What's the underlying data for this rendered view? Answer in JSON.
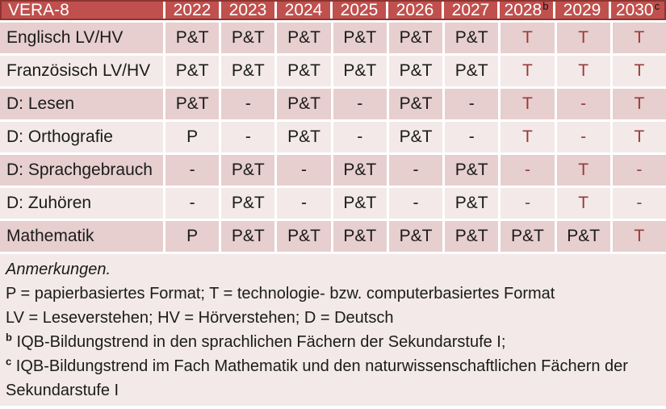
{
  "table": {
    "title": "VERA-8",
    "columns": [
      {
        "label": "2022",
        "sup": ""
      },
      {
        "label": "2023",
        "sup": ""
      },
      {
        "label": "2024",
        "sup": ""
      },
      {
        "label": "2025",
        "sup": ""
      },
      {
        "label": "2026",
        "sup": ""
      },
      {
        "label": "2027",
        "sup": ""
      },
      {
        "label": "2028",
        "sup": "b"
      },
      {
        "label": "2029",
        "sup": ""
      },
      {
        "label": "2030",
        "sup": "c"
      }
    ],
    "rows": [
      {
        "label": "Englisch LV/HV",
        "cells": [
          {
            "v": "P&T",
            "red": false
          },
          {
            "v": "P&T",
            "red": false
          },
          {
            "v": "P&T",
            "red": false
          },
          {
            "v": "P&T",
            "red": false
          },
          {
            "v": "P&T",
            "red": false
          },
          {
            "v": "P&T",
            "red": false
          },
          {
            "v": "T",
            "red": true
          },
          {
            "v": "T",
            "red": true
          },
          {
            "v": "T",
            "red": true
          }
        ]
      },
      {
        "label": "Französisch LV/HV",
        "cells": [
          {
            "v": "P&T",
            "red": false
          },
          {
            "v": "P&T",
            "red": false
          },
          {
            "v": "P&T",
            "red": false
          },
          {
            "v": "P&T",
            "red": false
          },
          {
            "v": "P&T",
            "red": false
          },
          {
            "v": "P&T",
            "red": false
          },
          {
            "v": "T",
            "red": true
          },
          {
            "v": "T",
            "red": true
          },
          {
            "v": "T",
            "red": true
          }
        ]
      },
      {
        "label": "D: Lesen",
        "cells": [
          {
            "v": "P&T",
            "red": false
          },
          {
            "v": "-",
            "red": false
          },
          {
            "v": "P&T",
            "red": false
          },
          {
            "v": "-",
            "red": false
          },
          {
            "v": "P&T",
            "red": false
          },
          {
            "v": "-",
            "red": false
          },
          {
            "v": "T",
            "red": true
          },
          {
            "v": "-",
            "red": true
          },
          {
            "v": "T",
            "red": true
          }
        ]
      },
      {
        "label": "D: Orthografie",
        "cells": [
          {
            "v": "P",
            "red": false
          },
          {
            "v": "-",
            "red": false
          },
          {
            "v": "P&T",
            "red": false
          },
          {
            "v": "-",
            "red": false
          },
          {
            "v": "P&T",
            "red": false
          },
          {
            "v": "-",
            "red": false
          },
          {
            "v": "T",
            "red": true
          },
          {
            "v": "-",
            "red": true
          },
          {
            "v": "T",
            "red": true
          }
        ]
      },
      {
        "label": "D: Sprachgebrauch",
        "cells": [
          {
            "v": "-",
            "red": false
          },
          {
            "v": "P&T",
            "red": false
          },
          {
            "v": "-",
            "red": false
          },
          {
            "v": "P&T",
            "red": false
          },
          {
            "v": "-",
            "red": false
          },
          {
            "v": "P&T",
            "red": false
          },
          {
            "v": "-",
            "red": true
          },
          {
            "v": "T",
            "red": true
          },
          {
            "v": "-",
            "red": true
          }
        ]
      },
      {
        "label": "D: Zuhören",
        "cells": [
          {
            "v": "-",
            "red": false
          },
          {
            "v": "P&T",
            "red": false
          },
          {
            "v": "-",
            "red": false
          },
          {
            "v": "P&T",
            "red": false
          },
          {
            "v": "-",
            "red": false
          },
          {
            "v": "P&T",
            "red": false
          },
          {
            "v": "-",
            "red": true
          },
          {
            "v": "T",
            "red": true
          },
          {
            "v": "-",
            "red": true
          }
        ]
      },
      {
        "label": "Mathematik",
        "cells": [
          {
            "v": "P",
            "red": false
          },
          {
            "v": "P&T",
            "red": false
          },
          {
            "v": "P&T",
            "red": false
          },
          {
            "v": "P&T",
            "red": false
          },
          {
            "v": "P&T",
            "red": false
          },
          {
            "v": "P&T",
            "red": false
          },
          {
            "v": "P&T",
            "red": false
          },
          {
            "v": "P&T",
            "red": false
          },
          {
            "v": "T",
            "red": true
          }
        ]
      }
    ]
  },
  "notes": {
    "heading": "Anmerkungen.",
    "formats": "P = papierbasiertes Format; T = technologie- bzw. computerbasiertes Format",
    "abbreviations": "LV = Leseverstehen; HV = Hörverstehen; D = Deutsch",
    "footnote_b": {
      "sup": "b",
      "text": "IQB-Bildungstrend in den sprachlichen Fächern der Sekundarstufe I;"
    },
    "footnote_c": {
      "sup": "c",
      "text": "IQB-Bildungstrend im Fach Mathematik und den naturwissenschaftlichen Fächern der Sekundarstufe I"
    }
  },
  "colors": {
    "header_bg": "#c0504d",
    "header_border": "#8c3431",
    "band_dark": "#e6cfce",
    "band_light": "#f2e9e8",
    "red_text": "#9b3936",
    "black_text": "#1b1b1b"
  }
}
